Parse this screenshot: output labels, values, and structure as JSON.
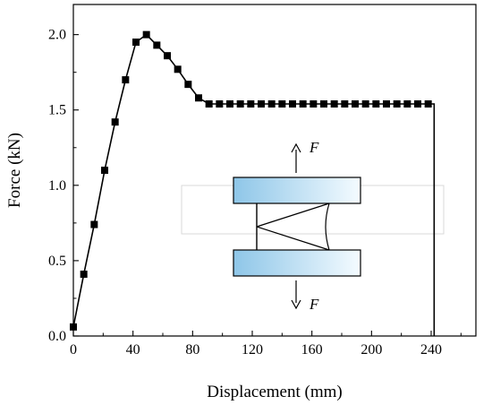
{
  "chart_data": {
    "type": "line",
    "xlabel": "Displacement (mm)",
    "ylabel": "Force (kN)",
    "xlim": [
      0,
      270
    ],
    "ylim": [
      0,
      2.2
    ],
    "xticks": [
      "0",
      "40",
      "80",
      "120",
      "160",
      "200",
      "240"
    ],
    "yticks": [
      "0.0",
      "0.5",
      "1.0",
      "1.5",
      "2.0"
    ],
    "grid": false,
    "series": [
      {
        "marker": "square",
        "line_color": "#000000",
        "x": [
          0,
          7,
          14,
          21,
          28,
          35,
          42,
          49,
          56,
          63,
          70,
          77,
          84,
          91,
          98,
          105,
          112,
          119,
          126,
          133,
          140,
          147,
          154,
          161,
          168,
          175,
          182,
          189,
          196,
          203,
          210,
          217,
          224,
          231,
          238,
          242
        ],
        "y": [
          0.06,
          0.41,
          0.74,
          1.1,
          1.42,
          1.7,
          1.95,
          2.0,
          1.93,
          1.86,
          1.77,
          1.67,
          1.58,
          1.54,
          1.54,
          1.54,
          1.54,
          1.54,
          1.54,
          1.54,
          1.54,
          1.54,
          1.54,
          1.54,
          1.54,
          1.54,
          1.54,
          1.54,
          1.54,
          1.54,
          1.54,
          1.54,
          1.54,
          1.54,
          1.54,
          1.54
        ],
        "drop_to_zero_at_x": 242
      }
    ],
    "inset": {
      "force_label_top": "F",
      "force_label_bottom": "F",
      "grip_gradient_colors": [
        "#8ec6e8",
        "#f4fbff"
      ]
    }
  }
}
